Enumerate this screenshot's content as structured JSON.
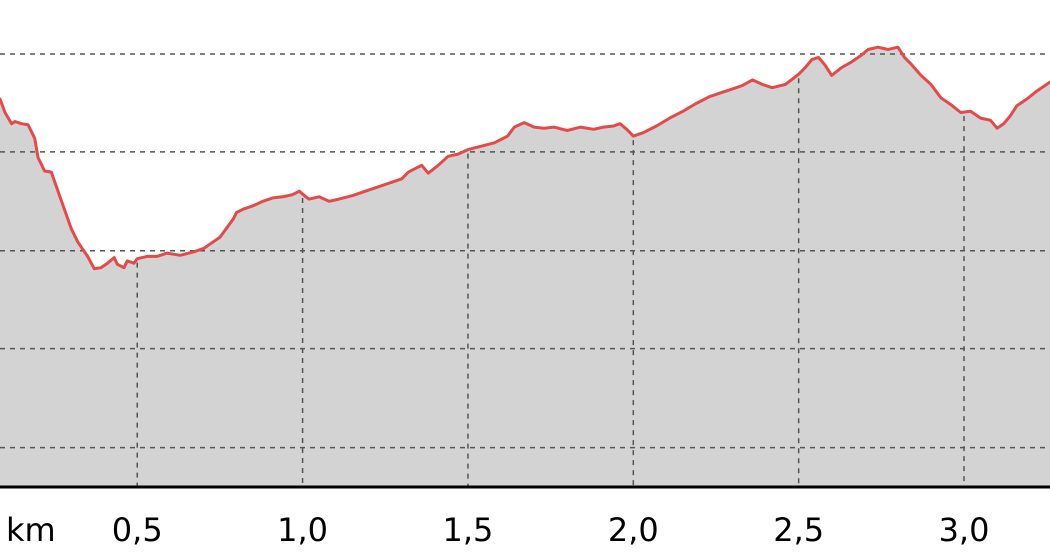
{
  "chart_data": {
    "type": "area",
    "title": "",
    "xlabel": "",
    "ylabel": "",
    "x_unit_label": "km",
    "x_tick_labels": [
      "0,5",
      "1,0",
      "1,5",
      "2,0",
      "2,5",
      "3,0"
    ],
    "x_ticks": [
      0.5,
      1.0,
      1.5,
      2.0,
      2.5,
      3.0
    ],
    "xlim": [
      0.085,
      3.26
    ],
    "ylim": [
      0.0,
      4.33
    ],
    "y_gridlines": [
      0.35,
      1.23,
      2.1,
      2.98,
      3.85
    ],
    "grid": true,
    "legend": "none",
    "colors": {
      "line": "#e34a4a",
      "fill": "#d3d3d3",
      "grid": "#555555",
      "axis": "#000000"
    },
    "series": [
      {
        "x": [
          0.085,
          0.1,
          0.12,
          0.13,
          0.15,
          0.17,
          0.19,
          0.2,
          0.22,
          0.24,
          0.27,
          0.3,
          0.32,
          0.35,
          0.37,
          0.39,
          0.41,
          0.43,
          0.44,
          0.46,
          0.47,
          0.49,
          0.5,
          0.53,
          0.56,
          0.59,
          0.63,
          0.67,
          0.7,
          0.73,
          0.75,
          0.77,
          0.79,
          0.8,
          0.82,
          0.85,
          0.88,
          0.91,
          0.94,
          0.97,
          0.99,
          1.01,
          1.02,
          1.05,
          1.08,
          1.11,
          1.15,
          1.19,
          1.23,
          1.27,
          1.3,
          1.32,
          1.34,
          1.36,
          1.38,
          1.41,
          1.44,
          1.47,
          1.5,
          1.54,
          1.58,
          1.6,
          1.62,
          1.64,
          1.67,
          1.7,
          1.73,
          1.76,
          1.8,
          1.84,
          1.88,
          1.91,
          1.94,
          1.96,
          1.98,
          2.0,
          2.03,
          2.07,
          2.11,
          2.15,
          2.19,
          2.23,
          2.27,
          2.3,
          2.33,
          2.36,
          2.39,
          2.42,
          2.46,
          2.5,
          2.52,
          2.54,
          2.56,
          2.58,
          2.6,
          2.63,
          2.66,
          2.69,
          2.71,
          2.74,
          2.77,
          2.8,
          2.82,
          2.84,
          2.87,
          2.9,
          2.93,
          2.96,
          2.99,
          3.02,
          3.05,
          3.08,
          3.1,
          3.12,
          3.14,
          3.16,
          3.19,
          3.22,
          3.24,
          3.26
        ],
        "y": [
          3.45,
          3.33,
          3.23,
          3.25,
          3.23,
          3.22,
          3.1,
          2.93,
          2.81,
          2.8,
          2.55,
          2.3,
          2.18,
          2.05,
          1.94,
          1.95,
          1.99,
          2.04,
          1.98,
          1.95,
          2.01,
          1.99,
          2.03,
          2.05,
          2.05,
          2.08,
          2.06,
          2.09,
          2.12,
          2.18,
          2.22,
          2.3,
          2.38,
          2.44,
          2.47,
          2.5,
          2.54,
          2.57,
          2.58,
          2.6,
          2.63,
          2.58,
          2.56,
          2.58,
          2.54,
          2.56,
          2.59,
          2.63,
          2.67,
          2.71,
          2.74,
          2.8,
          2.83,
          2.86,
          2.79,
          2.86,
          2.94,
          2.96,
          3.0,
          3.03,
          3.06,
          3.09,
          3.12,
          3.2,
          3.24,
          3.2,
          3.19,
          3.2,
          3.17,
          3.2,
          3.18,
          3.2,
          3.21,
          3.23,
          3.18,
          3.12,
          3.15,
          3.21,
          3.28,
          3.34,
          3.41,
          3.47,
          3.51,
          3.54,
          3.57,
          3.62,
          3.58,
          3.55,
          3.58,
          3.67,
          3.73,
          3.8,
          3.82,
          3.75,
          3.66,
          3.73,
          3.78,
          3.84,
          3.89,
          3.91,
          3.89,
          3.91,
          3.82,
          3.76,
          3.66,
          3.58,
          3.46,
          3.4,
          3.33,
          3.34,
          3.28,
          3.26,
          3.19,
          3.23,
          3.3,
          3.39,
          3.45,
          3.52,
          3.56,
          3.6
        ]
      }
    ]
  }
}
